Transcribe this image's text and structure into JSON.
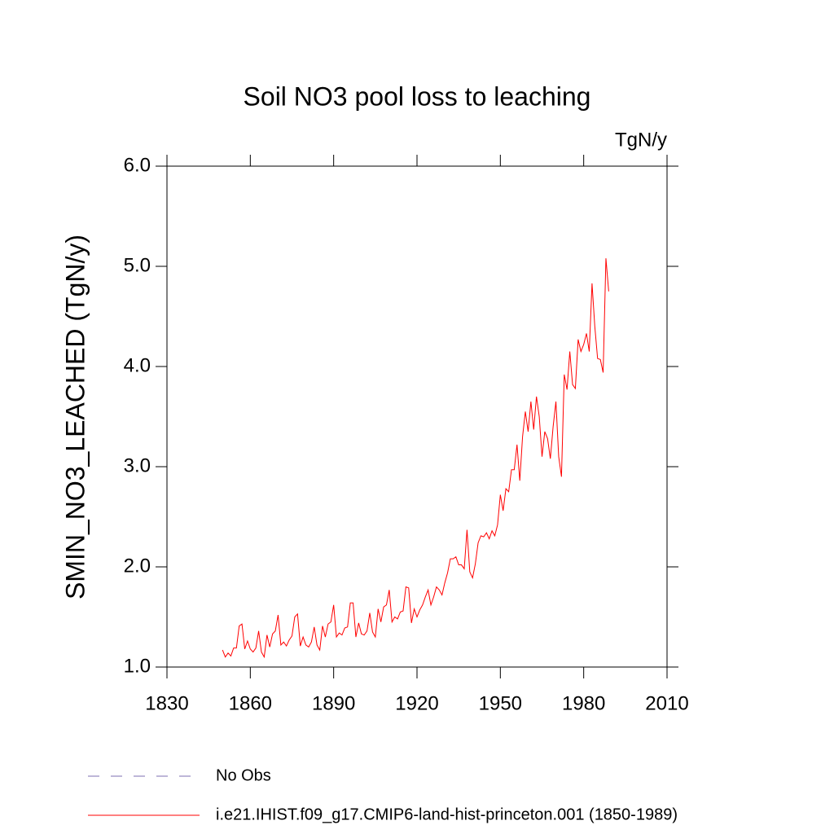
{
  "chart_data": {
    "type": "line",
    "title": "Soil NO3 pool loss to leaching",
    "units_label": "TgN/y",
    "y_label": "SMIN_NO3_LEACHED  (TgN/y)",
    "xlim": [
      1830,
      2010
    ],
    "xticks": [
      1830,
      1860,
      1890,
      1920,
      1950,
      1980,
      2010
    ],
    "ylim": [
      1,
      6
    ],
    "yticks": [
      {
        "value": 1,
        "label": "1.0"
      },
      {
        "value": 2,
        "label": "2.0"
      },
      {
        "value": 3,
        "label": "3.0"
      },
      {
        "value": 4,
        "label": "4.0"
      },
      {
        "value": 5,
        "label": "5.0"
      },
      {
        "value": 6,
        "label": "6.0"
      }
    ],
    "legend": [
      {
        "name": "No Obs",
        "color": "#7d6fb0",
        "dash": true
      }
    ],
    "series": [
      {
        "name": "i.e21.IHIST.f09_g17.CMIP6-land-hist-princeton.001 (1850-1989)",
        "color": "#ff0000",
        "x_start": 1850,
        "values": [
          1.17,
          1.1,
          1.14,
          1.11,
          1.19,
          1.19,
          1.41,
          1.43,
          1.18,
          1.26,
          1.18,
          1.15,
          1.19,
          1.36,
          1.15,
          1.1,
          1.32,
          1.2,
          1.33,
          1.36,
          1.52,
          1.22,
          1.25,
          1.21,
          1.27,
          1.31,
          1.5,
          1.53,
          1.21,
          1.3,
          1.22,
          1.2,
          1.25,
          1.4,
          1.22,
          1.17,
          1.41,
          1.3,
          1.43,
          1.45,
          1.62,
          1.3,
          1.34,
          1.32,
          1.39,
          1.4,
          1.64,
          1.64,
          1.3,
          1.44,
          1.33,
          1.32,
          1.36,
          1.54,
          1.35,
          1.3,
          1.58,
          1.45,
          1.6,
          1.62,
          1.77,
          1.45,
          1.5,
          1.48,
          1.55,
          1.56,
          1.8,
          1.79,
          1.44,
          1.58,
          1.5,
          1.57,
          1.62,
          1.7,
          1.77,
          1.62,
          1.7,
          1.8,
          1.77,
          1.72,
          1.84,
          1.94,
          2.08,
          2.08,
          2.1,
          2.02,
          2.02,
          1.98,
          2.37,
          1.95,
          1.89,
          2.03,
          2.24,
          2.31,
          2.3,
          2.34,
          2.28,
          2.36,
          2.31,
          2.42,
          2.72,
          2.56,
          2.78,
          2.75,
          2.97,
          2.97,
          3.22,
          2.86,
          3.3,
          3.55,
          3.35,
          3.65,
          3.37,
          3.7,
          3.5,
          3.1,
          3.35,
          3.28,
          3.08,
          3.4,
          3.65,
          3.1,
          2.9,
          3.92,
          3.77,
          4.15,
          3.82,
          3.78,
          4.27,
          4.15,
          4.22,
          4.33,
          4.15,
          4.83,
          4.4,
          4.08,
          4.07,
          3.94,
          5.08,
          4.75
        ]
      }
    ]
  }
}
